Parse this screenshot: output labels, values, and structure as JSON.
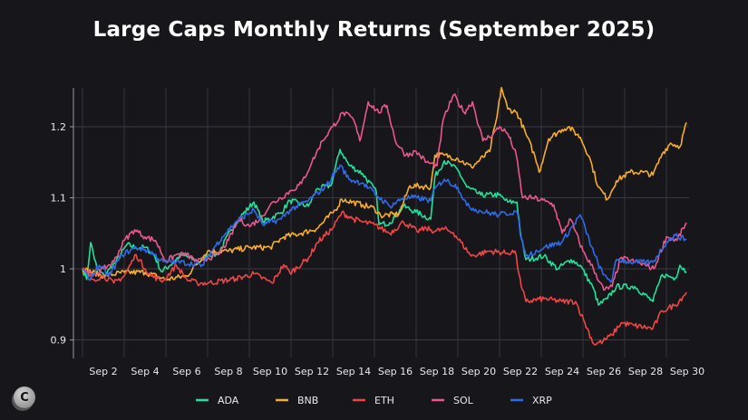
{
  "chart_data": {
    "type": "line",
    "title": "Large Caps Monthly Returns (September 2025)",
    "xlabel": "",
    "ylabel": "",
    "x_unit": "day of September 2025",
    "xlim": [
      1,
      30
    ],
    "ylim": [
      0.875,
      1.255
    ],
    "y_ticks": [
      0.9,
      1.0,
      1.1,
      1.2
    ],
    "y_tick_labels": [
      "0.9",
      "1",
      "1.1",
      "1.2"
    ],
    "x_ticks": [
      2,
      4,
      6,
      8,
      10,
      12,
      14,
      16,
      18,
      20,
      22,
      24,
      26,
      28,
      30
    ],
    "x_tick_labels": [
      "Sep 2",
      "Sep 4",
      "Sep 6",
      "Sep 8",
      "Sep 10",
      "Sep 12",
      "Sep 14",
      "Sep 16",
      "Sep 18",
      "Sep 20",
      "Sep 22",
      "Sep 24",
      "Sep 26",
      "Sep 28",
      "Sep 30"
    ],
    "grid": true,
    "legend_position": "bottom",
    "series": [
      {
        "name": "ADA",
        "color": "#22e29a",
        "points": [
          [
            1,
            1.0
          ],
          [
            1.2,
            0.985
          ],
          [
            1.39,
            1.037
          ],
          [
            1.7,
            1.0
          ],
          [
            2.04,
            0.99
          ],
          [
            2.3,
            1.0
          ],
          [
            2.61,
            1.01
          ],
          [
            3.13,
            1.034
          ],
          [
            3.57,
            1.03
          ],
          [
            4,
            1.03
          ],
          [
            4.43,
            1.02
          ],
          [
            4.78,
            0.996
          ],
          [
            5.2,
            1.005
          ],
          [
            5.74,
            1.02
          ],
          [
            6.61,
            1.01
          ],
          [
            7.04,
            1.02
          ],
          [
            7.48,
            1.02
          ],
          [
            8.35,
            1.066
          ],
          [
            9.22,
            1.094
          ],
          [
            9.65,
            1.066
          ],
          [
            10.52,
            1.079
          ],
          [
            10.95,
            1.096
          ],
          [
            11.83,
            1.088
          ],
          [
            12.26,
            1.113
          ],
          [
            12.91,
            1.117
          ],
          [
            13.35,
            1.168
          ],
          [
            13.78,
            1.146
          ],
          [
            14.43,
            1.134
          ],
          [
            15.09,
            1.108
          ],
          [
            15.22,
            1.062
          ],
          [
            15.74,
            1.065
          ],
          [
            16.39,
            1.088
          ],
          [
            17.0,
            1.08
          ],
          [
            17.7,
            1.07
          ],
          [
            17.9,
            1.13
          ],
          [
            18.35,
            1.152
          ],
          [
            19.0,
            1.139
          ],
          [
            19.43,
            1.115
          ],
          [
            20.09,
            1.104
          ],
          [
            20.96,
            1.104
          ],
          [
            21.39,
            1.094
          ],
          [
            21.83,
            1.094
          ],
          [
            22.04,
            1.043
          ],
          [
            22.26,
            1.013
          ],
          [
            23.13,
            1.018
          ],
          [
            23.78,
            1.0
          ],
          [
            24.43,
            1.013
          ],
          [
            24.87,
            1.005
          ],
          [
            25.52,
            0.971
          ],
          [
            25.74,
            0.949
          ],
          [
            26.17,
            0.958
          ],
          [
            26.6,
            0.975
          ],
          [
            27.48,
            0.975
          ],
          [
            28.35,
            0.954
          ],
          [
            28.8,
            0.992
          ],
          [
            29.43,
            0.987
          ],
          [
            29.65,
            1.005
          ],
          [
            29.96,
            0.996
          ]
        ]
      },
      {
        "name": "BNB",
        "color": "#f7ad2c",
        "points": [
          [
            1,
            1.0
          ],
          [
            2,
            0.99
          ],
          [
            3,
            0.995
          ],
          [
            4,
            0.995
          ],
          [
            5,
            0.985
          ],
          [
            6,
            0.99
          ],
          [
            7,
            1.025
          ],
          [
            8,
            1.025
          ],
          [
            9,
            1.03
          ],
          [
            10,
            1.03
          ],
          [
            10.65,
            1.045
          ],
          [
            11.5,
            1.05
          ],
          [
            12.26,
            1.057
          ],
          [
            13.13,
            1.083
          ],
          [
            13.43,
            1.098
          ],
          [
            14.43,
            1.09
          ],
          [
            15,
            1.085
          ],
          [
            15.3,
            1.075
          ],
          [
            16.17,
            1.077
          ],
          [
            16.7,
            1.117
          ],
          [
            17.7,
            1.115
          ],
          [
            17.9,
            1.16
          ],
          [
            18.35,
            1.16
          ],
          [
            19,
            1.155
          ],
          [
            19.65,
            1.143
          ],
          [
            20.52,
            1.165
          ],
          [
            20.87,
            1.213
          ],
          [
            21.09,
            1.255
          ],
          [
            21.39,
            1.225
          ],
          [
            21.83,
            1.22
          ],
          [
            22.26,
            1.19
          ],
          [
            22.7,
            1.158
          ],
          [
            22.9,
            1.136
          ],
          [
            23.35,
            1.183
          ],
          [
            24,
            1.196
          ],
          [
            24.3,
            1.2
          ],
          [
            24.87,
            1.185
          ],
          [
            25.3,
            1.158
          ],
          [
            25.74,
            1.115
          ],
          [
            26.17,
            1.098
          ],
          [
            26.6,
            1.124
          ],
          [
            27.26,
            1.136
          ],
          [
            27.9,
            1.136
          ],
          [
            28.35,
            1.132
          ],
          [
            28.8,
            1.162
          ],
          [
            29.2,
            1.177
          ],
          [
            29.65,
            1.172
          ],
          [
            29.96,
            1.206
          ]
        ]
      },
      {
        "name": "ETH",
        "color": "#f04545",
        "points": [
          [
            1,
            1.0
          ],
          [
            1.5,
            0.985
          ],
          [
            2,
            0.99
          ],
          [
            2.5,
            0.98
          ],
          [
            3,
            0.99
          ],
          [
            3.57,
            1.02
          ],
          [
            4,
            1.0
          ],
          [
            4.3,
            0.99
          ],
          [
            4.87,
            0.983
          ],
          [
            5.5,
            1.005
          ],
          [
            6,
            0.985
          ],
          [
            6.5,
            0.98
          ],
          [
            7.04,
            0.98
          ],
          [
            8.35,
            0.986
          ],
          [
            9.22,
            0.993
          ],
          [
            10.09,
            0.98
          ],
          [
            10.65,
            1.006
          ],
          [
            10.95,
            0.994
          ],
          [
            11.83,
            1.015
          ],
          [
            12.26,
            1.037
          ],
          [
            13.0,
            1.057
          ],
          [
            13.43,
            1.079
          ],
          [
            14.0,
            1.07
          ],
          [
            14.43,
            1.066
          ],
          [
            15.0,
            1.062
          ],
          [
            15.74,
            1.05
          ],
          [
            16.39,
            1.066
          ],
          [
            17.04,
            1.053
          ],
          [
            17.48,
            1.057
          ],
          [
            17.9,
            1.053
          ],
          [
            18.35,
            1.056
          ],
          [
            18.78,
            1.051
          ],
          [
            19.65,
            1.018
          ],
          [
            20.52,
            1.025
          ],
          [
            21.39,
            1.022
          ],
          [
            21.74,
            1.025
          ],
          [
            22.04,
            0.975
          ],
          [
            22.26,
            0.954
          ],
          [
            23.13,
            0.958
          ],
          [
            24.0,
            0.954
          ],
          [
            24.65,
            0.954
          ],
          [
            25.09,
            0.924
          ],
          [
            25.52,
            0.894
          ],
          [
            25.96,
            0.898
          ],
          [
            26.39,
            0.907
          ],
          [
            26.83,
            0.924
          ],
          [
            27.48,
            0.92
          ],
          [
            28.35,
            0.916
          ],
          [
            28.8,
            0.941
          ],
          [
            29.43,
            0.949
          ],
          [
            29.96,
            0.967
          ]
        ]
      },
      {
        "name": "SOL",
        "color": "#e9588c",
        "points": [
          [
            1,
            1.0
          ],
          [
            1.5,
            0.99
          ],
          [
            2,
            1.0
          ],
          [
            2.5,
            1.01
          ],
          [
            3,
            1.04
          ],
          [
            3.5,
            1.055
          ],
          [
            4,
            1.045
          ],
          [
            4.5,
            1.04
          ],
          [
            5,
            1.01
          ],
          [
            5.5,
            1.02
          ],
          [
            6,
            1.02
          ],
          [
            6.5,
            1.01
          ],
          [
            7,
            1.015
          ],
          [
            7.5,
            1.02
          ],
          [
            8,
            1.04
          ],
          [
            8.5,
            1.07
          ],
          [
            9,
            1.06
          ],
          [
            9.5,
            1.07
          ],
          [
            10,
            1.09
          ],
          [
            10.5,
            1.1
          ],
          [
            11,
            1.11
          ],
          [
            11.5,
            1.12
          ],
          [
            12,
            1.15
          ],
          [
            12.5,
            1.18
          ],
          [
            13,
            1.2
          ],
          [
            13.5,
            1.22
          ],
          [
            14,
            1.21
          ],
          [
            14.3,
            1.18
          ],
          [
            14.7,
            1.235
          ],
          [
            15.2,
            1.22
          ],
          [
            15.6,
            1.23
          ],
          [
            16,
            1.18
          ],
          [
            16.5,
            1.16
          ],
          [
            17,
            1.165
          ],
          [
            17.5,
            1.15
          ],
          [
            18,
            1.145
          ],
          [
            18.3,
            1.21
          ],
          [
            18.8,
            1.245
          ],
          [
            19.3,
            1.22
          ],
          [
            19.7,
            1.235
          ],
          [
            20.2,
            1.18
          ],
          [
            20.7,
            1.19
          ],
          [
            21,
            1.2
          ],
          [
            21.4,
            1.19
          ],
          [
            21.8,
            1.16
          ],
          [
            22.1,
            1.1
          ],
          [
            22.6,
            1.1
          ],
          [
            23.2,
            1.095
          ],
          [
            23.6,
            1.09
          ],
          [
            24,
            1.05
          ],
          [
            24.4,
            1.07
          ],
          [
            25,
            1.025
          ],
          [
            25.5,
            1.0
          ],
          [
            26,
            0.97
          ],
          [
            26.4,
            0.975
          ],
          [
            26.8,
            1.015
          ],
          [
            27.5,
            1.01
          ],
          [
            28,
            1.005
          ],
          [
            28.4,
            1.0
          ],
          [
            29,
            1.045
          ],
          [
            29.5,
            1.04
          ],
          [
            29.96,
            1.065
          ]
        ]
      },
      {
        "name": "XRP",
        "color": "#2f6be6",
        "points": [
          [
            1,
            1.0
          ],
          [
            1.3,
            0.985
          ],
          [
            1.8,
            1.005
          ],
          [
            2.26,
            0.99
          ],
          [
            2.9,
            1.02
          ],
          [
            3.57,
            1.03
          ],
          [
            4.22,
            1.025
          ],
          [
            4.87,
            1.01
          ],
          [
            5.5,
            1.01
          ],
          [
            6.8,
            1.005
          ],
          [
            7.04,
            1.019
          ],
          [
            7.7,
            1.045
          ],
          [
            8.35,
            1.066
          ],
          [
            9.22,
            1.083
          ],
          [
            9.65,
            1.062
          ],
          [
            10.52,
            1.07
          ],
          [
            10.95,
            1.083
          ],
          [
            11.83,
            1.096
          ],
          [
            12.7,
            1.117
          ],
          [
            13.35,
            1.146
          ],
          [
            13.78,
            1.126
          ],
          [
            14.43,
            1.121
          ],
          [
            15.09,
            1.104
          ],
          [
            15.74,
            1.088
          ],
          [
            16.39,
            1.1
          ],
          [
            17.04,
            1.1
          ],
          [
            17.7,
            1.096
          ],
          [
            17.9,
            1.113
          ],
          [
            18.35,
            1.126
          ],
          [
            19.0,
            1.115
          ],
          [
            19.43,
            1.089
          ],
          [
            20.09,
            1.081
          ],
          [
            20.96,
            1.076
          ],
          [
            21.83,
            1.081
          ],
          [
            22.04,
            1.043
          ],
          [
            22.26,
            1.018
          ],
          [
            23.13,
            1.03
          ],
          [
            24.0,
            1.038
          ],
          [
            24.87,
            1.076
          ],
          [
            25.52,
            1.022
          ],
          [
            25.96,
            0.992
          ],
          [
            26.39,
            0.983
          ],
          [
            26.6,
            1.013
          ],
          [
            27.48,
            1.009
          ],
          [
            28.35,
            1.009
          ],
          [
            29.0,
            1.038
          ],
          [
            29.43,
            1.047
          ],
          [
            29.96,
            1.041
          ]
        ]
      }
    ]
  },
  "logo": {
    "letter": "C"
  }
}
